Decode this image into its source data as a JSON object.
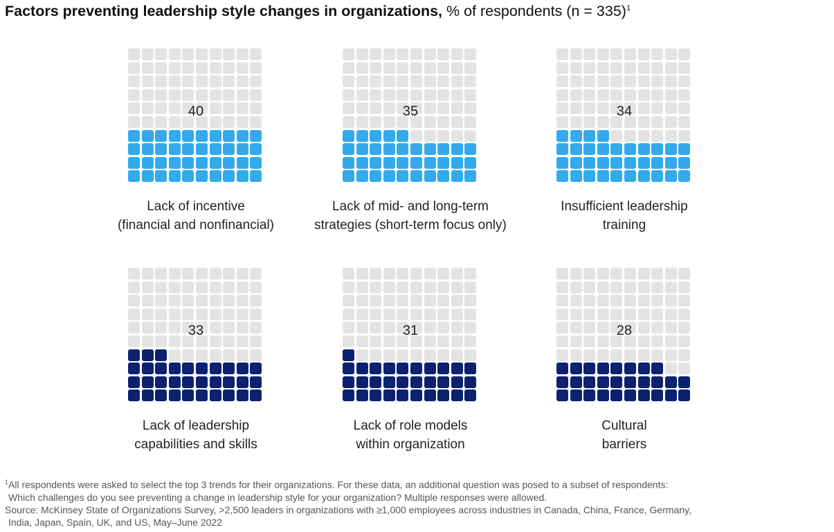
{
  "title": {
    "bold": "Factors preventing leadership style changes in organizations,",
    "normal": " % of respondents (n = 335)",
    "superscript": "1"
  },
  "colors": {
    "empty": "#e3e3e3",
    "light_blue": "#33aaee",
    "dark_navy": "#0c2270"
  },
  "chart_data": {
    "type": "waffle",
    "grid": "10x10",
    "unit": "% of respondents",
    "n": 335,
    "items": [
      {
        "value": 40,
        "label_lines": [
          "Lack of incentive",
          "(financial and nonfinancial)"
        ],
        "color": "#33aaee"
      },
      {
        "value": 35,
        "label_lines": [
          "Lack of mid- and long-term",
          "strategies (short-term focus only)"
        ],
        "color": "#33aaee"
      },
      {
        "value": 34,
        "label_lines": [
          "Insufficient leadership",
          "training"
        ],
        "color": "#33aaee"
      },
      {
        "value": 33,
        "label_lines": [
          "Lack of leadership",
          "capabilities and skills"
        ],
        "color": "#0c2270"
      },
      {
        "value": 31,
        "label_lines": [
          "Lack of role models",
          "within organization"
        ],
        "color": "#0c2270"
      },
      {
        "value": 28,
        "label_lines": [
          "Cultural",
          "barriers"
        ],
        "color": "#0c2270"
      }
    ]
  },
  "footnote": {
    "marker": "1",
    "line1": "All respondents were asked to select the top 3 trends for their organizations. For these data, an additional question was posed to a subset of respondents:",
    "line2": "Which challenges do you see preventing a change in leadership style for your organization? Multiple responses were allowed.",
    "line3": "Source: McKinsey State of Organizations Survey, >2,500 leaders in organizations with ≥1,000 employees across industries in Canada, China, France, Germany,",
    "line4": "India, Japan, Spain, UK, and US, May–June 2022"
  }
}
